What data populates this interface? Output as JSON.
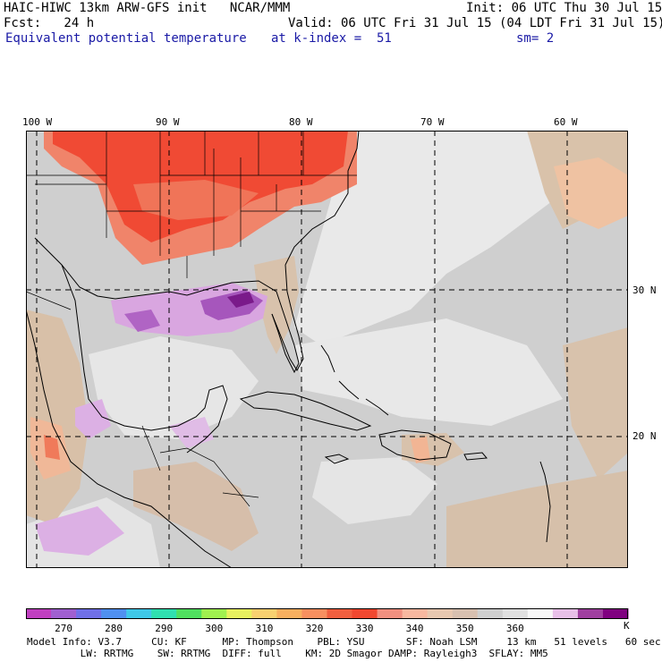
{
  "header": {
    "line1_left": "HAIC-HIWC 13km ARW-GFS init   NCAR/MMM",
    "line1_right": "Init: 06 UTC Thu 30 Jul 15",
    "line2_left": "Fcst:   24 h",
    "line2_right": "Valid: 06 UTC Fri 31 Jul 15 (04 LDT Fri 31 Jul 15)",
    "field_name": "Equivalent potential temperature",
    "level": "at k-index =  51",
    "smoothing": "sm= 2"
  },
  "map": {
    "lon_labels": [
      "100 W",
      "90 W",
      "80 W",
      "70 W",
      "60 W"
    ],
    "lat_labels": [
      "30 N",
      "20 N"
    ],
    "colors": {
      "background": "#cfcfcf",
      "light": "#e9e9e9",
      "tan": "#d8c0a8",
      "peach": "#f0b898",
      "salmon": "#f07a5a",
      "red": "#f04830",
      "lavender": "#d6a0e0",
      "purple": "#a050b8",
      "dark_purple": "#7a1a8a"
    }
  },
  "colorbar": {
    "colors": [
      "#c040c0",
      "#a060d0",
      "#7070e8",
      "#5090f0",
      "#40c8e8",
      "#30e0b0",
      "#50e060",
      "#a0f050",
      "#e8f060",
      "#f8d070",
      "#f8b060",
      "#f89060",
      "#f06040",
      "#f04830",
      "#f09080",
      "#f8b8a0",
      "#e8c8b0",
      "#d8c0b0",
      "#cfcfcf",
      "#e0e0e0",
      "#f8f8f8",
      "#e8c0e8",
      "#a040a0",
      "#800080"
    ],
    "tick_labels": [
      "270",
      "280",
      "290",
      "300",
      "310",
      "320",
      "330",
      "340",
      "350",
      "360"
    ],
    "unit": "K"
  },
  "footer": {
    "line1": "Model Info: V3.7     CU: KF      MP: Thompson    PBL: YSU       SF: Noah LSM     13 km   51 levels   60 sec",
    "line2": "         LW: RRTMG    SW: RRTMG  DIFF: full    KM: 2D Smagor DAMP: Rayleigh3  SFLAY: MM5"
  }
}
